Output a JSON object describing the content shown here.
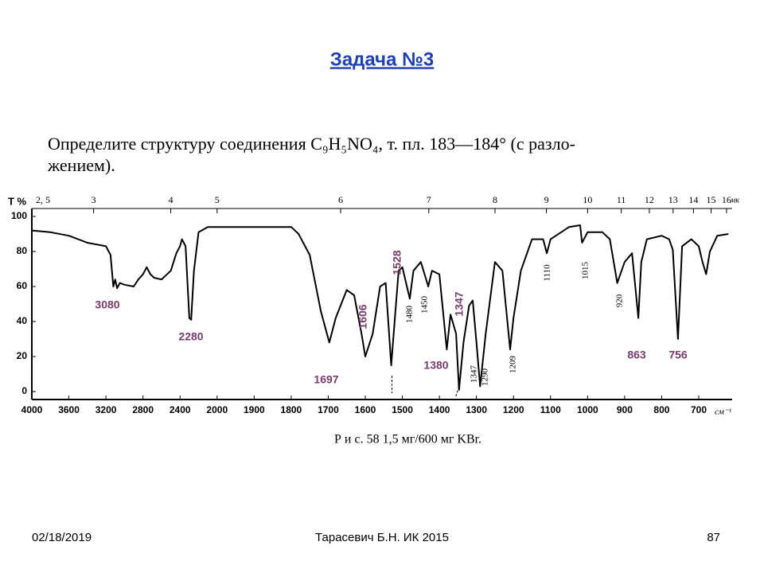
{
  "header": {
    "title": "Задача №3"
  },
  "problem": {
    "line1": "Определите структуру соединения C₉H₅NO₄, т. пл. 183—184° (с разло-",
    "line2": "жением)."
  },
  "chart_data": {
    "type": "line",
    "y_label": "T %",
    "x_unit": "см⁻¹",
    "top_unit": "мк",
    "xlim": [
      4000,
      610
    ],
    "ylim": [
      0,
      100
    ],
    "xticks": [
      4000,
      3600,
      3200,
      2800,
      2400,
      2000,
      1900,
      1800,
      1700,
      1600,
      1500,
      1400,
      1300,
      1200,
      1100,
      1000,
      900,
      800,
      700
    ],
    "yticks": [
      0,
      20,
      40,
      60,
      80,
      100
    ],
    "top_ticks": [
      {
        "value": 2.5,
        "label": "2, 5"
      },
      3,
      4,
      5,
      6,
      7,
      8,
      9,
      10,
      11,
      12,
      13,
      14,
      15,
      16
    ],
    "x": [
      4000,
      3800,
      3600,
      3400,
      3300,
      3200,
      3150,
      3120,
      3100,
      3080,
      3050,
      3000,
      2900,
      2850,
      2800,
      2760,
      2720,
      2680,
      2600,
      2500,
      2440,
      2400,
      2380,
      2340,
      2300,
      2280,
      2250,
      2200,
      2100,
      2000,
      1900,
      1800,
      1780,
      1750,
      1720,
      1697,
      1680,
      1650,
      1630,
      1610,
      1600,
      1580,
      1560,
      1545,
      1530,
      1520,
      1510,
      1500,
      1480,
      1470,
      1450,
      1440,
      1430,
      1420,
      1400,
      1380,
      1370,
      1355,
      1347,
      1335,
      1320,
      1310,
      1300,
      1290,
      1275,
      1250,
      1230,
      1209,
      1200,
      1180,
      1150,
      1120,
      1110,
      1100,
      1050,
      1020,
      1015,
      1000,
      960,
      940,
      920,
      900,
      880,
      863,
      855,
      840,
      800,
      780,
      770,
      756,
      745,
      720,
      700,
      690,
      680,
      670,
      650,
      620
    ],
    "series": [
      {
        "name": "spectrum",
        "color": "#000000",
        "values": [
          92,
          91,
          89,
          85,
          84,
          83,
          78,
          60,
          64,
          59,
          62,
          61,
          60,
          64,
          67,
          71,
          67,
          65,
          64,
          69,
          79,
          83,
          87,
          83,
          42,
          41,
          69,
          91,
          94,
          94,
          94,
          94,
          90,
          78,
          46,
          28,
          42,
          58,
          55,
          33,
          20,
          33,
          60,
          62,
          15,
          42,
          69,
          71,
          53,
          69,
          74,
          67,
          60,
          69,
          67,
          24,
          44,
          33,
          1,
          28,
          49,
          52,
          28,
          3,
          33,
          74,
          69,
          24,
          42,
          69,
          87,
          87,
          79,
          87,
          94,
          95,
          85,
          91,
          91,
          87,
          62,
          74,
          79,
          42,
          74,
          87,
          89,
          87,
          81,
          30,
          83,
          87,
          83,
          74,
          67,
          80,
          89,
          90
        ]
      }
    ],
    "annotations": [
      {
        "text": "3080",
        "color": "#7a3b6d"
      },
      {
        "text": "2280",
        "color": "#7a3b6d"
      },
      {
        "text": "1697",
        "color": "#7a3b6d"
      },
      {
        "text": "1606",
        "color": "#7a3b6d"
      },
      {
        "text": "1528",
        "color": "#7a3b6d"
      },
      {
        "text": "1380",
        "color": "#7a3b6d"
      },
      {
        "text": "1347",
        "color": "#7a3b6d"
      },
      {
        "text": "863",
        "color": "#7a3b6d"
      },
      {
        "text": "756",
        "color": "#7a3b6d"
      },
      {
        "text": "1480",
        "color": "#000000"
      },
      {
        "text": "1450",
        "color": "#000000"
      },
      {
        "text": "1347",
        "color": "#000000"
      },
      {
        "text": "1290",
        "color": "#000000"
      },
      {
        "text": "1209",
        "color": "#000000"
      },
      {
        "text": "1110",
        "color": "#000000"
      },
      {
        "text": "1015",
        "color": "#000000"
      },
      {
        "text": "920",
        "color": "#000000"
      }
    ],
    "caption": "Р и с. 58  1,5 мг/600 мг KBr."
  },
  "footer": {
    "date": "02/18/2019",
    "author": "Тарасевич Б.Н.  ИК 2015",
    "page": "87"
  }
}
